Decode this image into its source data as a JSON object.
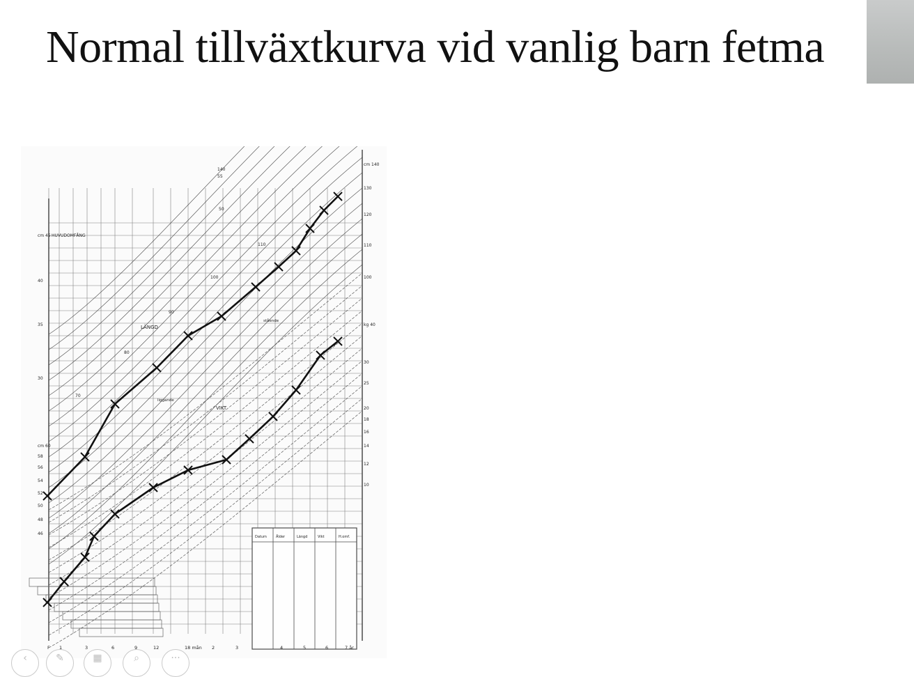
{
  "slide": {
    "title": "Normal tillväxtkurva vid vanlig barn fetma"
  },
  "chart": {
    "labels": {
      "head": "HUVUDOMFÅNG",
      "length": "LÄNGD",
      "weight": "VIKT",
      "lying": "liggande",
      "standing": "stående"
    },
    "left_ticks_head": [
      "cm 45",
      "40",
      "35",
      "30"
    ],
    "left_ticks_lying": [
      "cm 60",
      "58",
      "56",
      "54",
      "52",
      "50",
      "48",
      "46"
    ],
    "right_ticks_length": [
      "cm 140",
      "130",
      "120",
      "110",
      "100"
    ],
    "right_ticks_weight": [
      "kg 40",
      "30",
      "25",
      "20",
      "18",
      "16",
      "14",
      "12",
      "10"
    ],
    "bottom_ticks": [
      "F",
      "1",
      "3",
      "6",
      "9",
      "12",
      "18 mån",
      "2",
      "3",
      "4",
      "5",
      "6",
      "7 år"
    ],
    "inner_numbers": [
      "140",
      "55",
      "50",
      "110",
      "100",
      "90",
      "80",
      "70"
    ],
    "table_headers": [
      "Datum",
      "Ålder",
      "Längd",
      "Vikt",
      "H.omf."
    ]
  },
  "toolbar": {
    "prev": "‹",
    "pen": "pen-icon",
    "slides": "slides-icon",
    "zoom": "zoom-icon",
    "more": "···"
  }
}
